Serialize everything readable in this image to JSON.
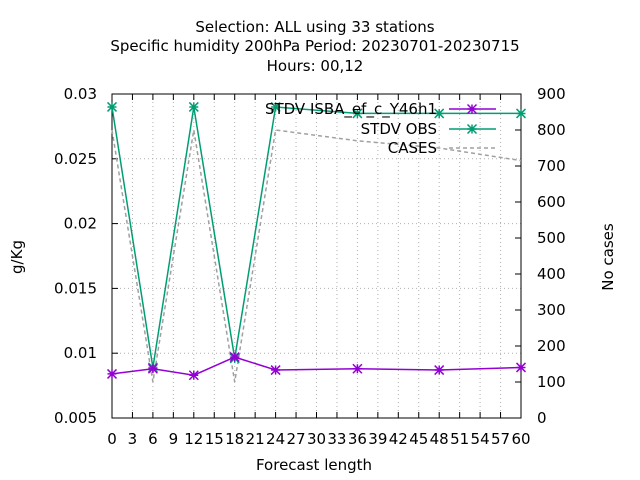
{
  "chart_data": {
    "type": "line",
    "title_lines": [
      "Selection: ALL using    33 stations",
      "Specific humidity 200hPa   Period: 20230701-20230715",
      "Hours:  00,12"
    ],
    "xlabel": "Forecast length",
    "ylabel": "g/Kg",
    "y2label": "No cases",
    "xlim": [
      0,
      60
    ],
    "ylim": [
      0.005,
      0.03
    ],
    "y2lim": [
      0,
      900
    ],
    "x_ticks": [
      "0",
      "3",
      "6",
      "9",
      "12",
      "15",
      "18",
      "21",
      "24",
      "27",
      "30",
      "33",
      "36",
      "39",
      "42",
      "45",
      "48",
      "51",
      "54",
      "57",
      "60"
    ],
    "y_ticks": [
      "0.005",
      "0.01",
      "0.015",
      "0.02",
      "0.025",
      "0.03"
    ],
    "y2_ticks": [
      "0",
      "100",
      "200",
      "300",
      "400",
      "500",
      "600",
      "700",
      "800",
      "900"
    ],
    "grid": true,
    "legend_position": "top-right",
    "x": [
      0,
      6,
      12,
      18,
      24,
      36,
      48,
      60
    ],
    "series": [
      {
        "name": "STDV ISBA_ef_c_Y46h1",
        "axis": "y",
        "color": "#9400d3",
        "values": [
          0.0084,
          0.0088,
          0.0083,
          0.0097,
          0.0087,
          0.0088,
          0.0087,
          0.0089
        ]
      },
      {
        "name": "STDV OBS",
        "axis": "y",
        "color": "#009e73",
        "values": [
          0.029,
          0.0089,
          0.029,
          0.0096,
          0.029,
          0.0285,
          0.0285,
          0.0285
        ]
      },
      {
        "name": "CASES",
        "axis": "y2",
        "color": "#a0a0a0",
        "dashed": true,
        "x": [
          0,
          6,
          12,
          18,
          24,
          36,
          48,
          60
        ],
        "values": [
          800,
          100,
          800,
          100,
          800,
          770,
          750,
          715
        ]
      }
    ]
  }
}
